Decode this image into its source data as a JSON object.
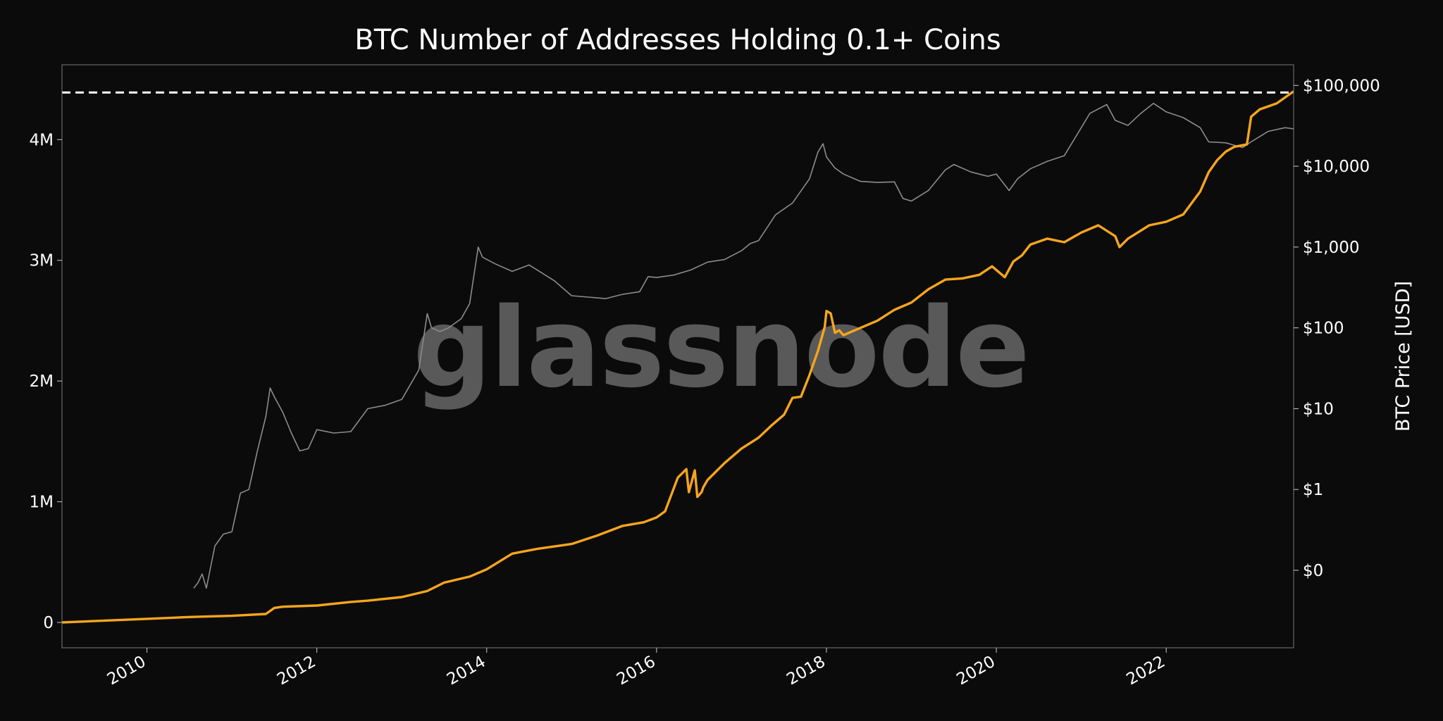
{
  "chart_data": {
    "type": "line",
    "title": "BTC Number of Addresses Holding 0.1+ Coins",
    "watermark": "glassnode",
    "colors": {
      "background": "#0b0b0b",
      "addresses_line": "#f7a51c",
      "price_line": "#8c8c8c",
      "ath_line": "#ffffff"
    },
    "x_axis": {
      "range": [
        2009.0,
        2023.5
      ],
      "ticks": [
        {
          "value": 2010,
          "label": "2010"
        },
        {
          "value": 2012,
          "label": "2012"
        },
        {
          "value": 2014,
          "label": "2014"
        },
        {
          "value": 2016,
          "label": "2016"
        },
        {
          "value": 2018,
          "label": "2018"
        },
        {
          "value": 2020,
          "label": "2020"
        },
        {
          "value": 2022,
          "label": "2022"
        }
      ]
    },
    "y_left": {
      "range": [
        -210000,
        4620000
      ],
      "ticks": [
        {
          "value": 0,
          "label": "0"
        },
        {
          "value": 1000000,
          "label": "1M"
        },
        {
          "value": 2000000,
          "label": "2M"
        },
        {
          "value": 3000000,
          "label": "3M"
        },
        {
          "value": 4000000,
          "label": "4M"
        }
      ]
    },
    "y_right": {
      "scale": "log",
      "label": "BTC Price [USD]",
      "range": [
        0.011,
        180000
      ],
      "ticks": [
        {
          "value": 0.1,
          "label": "$0"
        },
        {
          "value": 1,
          "label": "$1"
        },
        {
          "value": 10,
          "label": "$10"
        },
        {
          "value": 100,
          "label": "$100"
        },
        {
          "value": 1000,
          "label": "$1,000"
        },
        {
          "value": 10000,
          "label": "$10,000"
        },
        {
          "value": 100000,
          "label": "$100,000"
        }
      ]
    },
    "ath_level": 4390000,
    "series": [
      {
        "axis": "left",
        "x": [
          2009.0,
          2009.5,
          2010.0,
          2010.5,
          2011.0,
          2011.4,
          2011.5,
          2011.6,
          2012.0,
          2012.4,
          2012.6,
          2013.0,
          2013.3,
          2013.5,
          2013.8,
          2014.0,
          2014.3,
          2014.6,
          2015.0,
          2015.3,
          2015.6,
          2015.85,
          2016.0,
          2016.1,
          2016.25,
          2016.35,
          2016.38,
          2016.45,
          2016.48,
          2016.53,
          2016.55,
          2016.6,
          2016.8,
          2017.0,
          2017.2,
          2017.35,
          2017.5,
          2017.6,
          2017.7,
          2017.8,
          2017.9,
          2017.98,
          2018.0,
          2018.05,
          2018.1,
          2018.15,
          2018.2,
          2018.4,
          2018.6,
          2018.8,
          2019.0,
          2019.2,
          2019.4,
          2019.6,
          2019.8,
          2019.95,
          2020.1,
          2020.2,
          2020.3,
          2020.4,
          2020.6,
          2020.8,
          2021.0,
          2021.2,
          2021.4,
          2021.45,
          2021.55,
          2021.8,
          2022.0,
          2022.2,
          2022.4,
          2022.5,
          2022.6,
          2022.7,
          2022.8,
          2022.95,
          2023.0,
          2023.1,
          2023.3,
          2023.5
        ],
        "y": [
          0,
          15000,
          30000,
          45000,
          55000,
          70000,
          120000,
          130000,
          140000,
          170000,
          180000,
          210000,
          260000,
          330000,
          380000,
          440000,
          570000,
          610000,
          650000,
          720000,
          800000,
          830000,
          870000,
          920000,
          1200000,
          1270000,
          1080000,
          1260000,
          1040000,
          1080000,
          1120000,
          1180000,
          1320000,
          1440000,
          1530000,
          1630000,
          1720000,
          1860000,
          1870000,
          2050000,
          2250000,
          2450000,
          2580000,
          2560000,
          2400000,
          2420000,
          2380000,
          2440000,
          2500000,
          2590000,
          2650000,
          2760000,
          2840000,
          2850000,
          2880000,
          2950000,
          2860000,
          2990000,
          3040000,
          3130000,
          3180000,
          3150000,
          3230000,
          3290000,
          3200000,
          3110000,
          3180000,
          3290000,
          3320000,
          3380000,
          3570000,
          3730000,
          3830000,
          3900000,
          3940000,
          3960000,
          4190000,
          4250000,
          4300000,
          4400000
        ]
      },
      {
        "axis": "right",
        "x": [
          2010.55,
          2010.6,
          2010.65,
          2010.7,
          2010.8,
          2010.9,
          2011.0,
          2011.1,
          2011.2,
          2011.3,
          2011.4,
          2011.45,
          2011.5,
          2011.6,
          2011.7,
          2011.8,
          2011.9,
          2012.0,
          2012.2,
          2012.4,
          2012.6,
          2012.8,
          2013.0,
          2013.2,
          2013.3,
          2013.35,
          2013.45,
          2013.55,
          2013.7,
          2013.8,
          2013.9,
          2013.95,
          2014.1,
          2014.3,
          2014.5,
          2014.8,
          2015.0,
          2015.2,
          2015.4,
          2015.6,
          2015.8,
          2015.9,
          2016.0,
          2016.2,
          2016.4,
          2016.6,
          2016.8,
          2017.0,
          2017.1,
          2017.2,
          2017.4,
          2017.6,
          2017.8,
          2017.9,
          2017.96,
          2018.0,
          2018.1,
          2018.2,
          2018.4,
          2018.6,
          2018.8,
          2018.9,
          2019.0,
          2019.2,
          2019.4,
          2019.5,
          2019.7,
          2019.9,
          2020.0,
          2020.15,
          2020.25,
          2020.4,
          2020.6,
          2020.8,
          2021.0,
          2021.1,
          2021.3,
          2021.4,
          2021.55,
          2021.7,
          2021.85,
          2022.0,
          2022.2,
          2022.4,
          2022.5,
          2022.7,
          2022.9,
          2023.0,
          2023.2,
          2023.4,
          2023.5
        ],
        "y": [
          0.06,
          0.07,
          0.09,
          0.06,
          0.2,
          0.28,
          0.3,
          0.9,
          1.0,
          3.0,
          8.0,
          18.0,
          14.0,
          9.0,
          5.0,
          3.0,
          3.2,
          5.5,
          5.0,
          5.2,
          10.0,
          11.0,
          13.0,
          30.0,
          150.0,
          100.0,
          90.0,
          100.0,
          130.0,
          200.0,
          1000.0,
          750.0,
          620.0,
          500.0,
          600.0,
          380.0,
          250.0,
          240.0,
          230.0,
          260.0,
          280.0,
          430.0,
          420.0,
          450.0,
          520.0,
          650.0,
          700.0,
          900.0,
          1100.0,
          1200.0,
          2500.0,
          3500.0,
          7000.0,
          15000.0,
          19000.0,
          13000.0,
          9500.0,
          8000.0,
          6500.0,
          6300.0,
          6400.0,
          4000.0,
          3700.0,
          5000.0,
          9000.0,
          10500.0,
          8500.0,
          7500.0,
          8000.0,
          5000.0,
          7000.0,
          9300.0,
          11500.0,
          13500.0,
          30000.0,
          45000.0,
          58000.0,
          37000.0,
          32000.0,
          45000.0,
          60000.0,
          47000.0,
          40000.0,
          30000.0,
          20000.0,
          19500.0,
          17000.0,
          20000.0,
          27000.0,
          30000.0,
          29000.0
        ]
      }
    ]
  }
}
